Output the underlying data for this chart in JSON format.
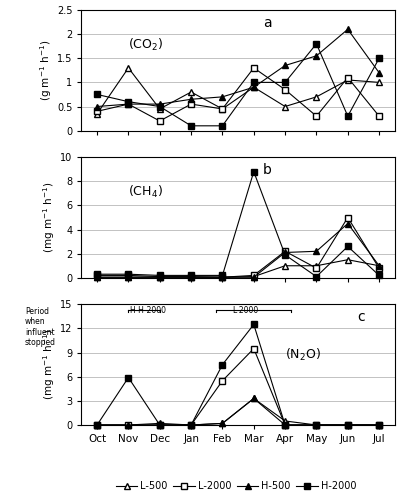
{
  "x_labels": [
    "Oct",
    "Nov",
    "Dec",
    "Jan",
    "Feb",
    "Mar",
    "Apr",
    "May",
    "Jun",
    "Jul"
  ],
  "x_vals": [
    0,
    1,
    2,
    3,
    4,
    5,
    6,
    7,
    8,
    9
  ],
  "co2_L500": [
    0.35,
    1.3,
    0.45,
    0.8,
    0.45,
    0.9,
    0.5,
    0.7,
    1.05,
    1.0
  ],
  "co2_L2000": [
    0.4,
    0.55,
    0.2,
    0.55,
    0.45,
    1.3,
    0.85,
    0.3,
    1.1,
    0.3
  ],
  "co2_H500": [
    0.5,
    0.55,
    0.55,
    0.65,
    0.7,
    0.9,
    1.35,
    1.55,
    2.1,
    1.2
  ],
  "co2_H2000": [
    0.75,
    0.6,
    0.5,
    0.1,
    0.1,
    1.0,
    1.0,
    1.8,
    0.3,
    1.5
  ],
  "ch4_L500": [
    0.05,
    0.05,
    0.05,
    0.05,
    0.05,
    0.1,
    1.0,
    1.0,
    1.5,
    1.0
  ],
  "ch4_L2000": [
    0.2,
    0.2,
    0.1,
    0.1,
    0.05,
    0.2,
    2.2,
    0.8,
    5.0,
    0.8
  ],
  "ch4_H500": [
    0.05,
    0.05,
    0.05,
    0.05,
    0.05,
    0.05,
    2.1,
    2.2,
    4.5,
    1.0
  ],
  "ch4_H2000": [
    0.3,
    0.3,
    0.2,
    0.2,
    0.2,
    8.8,
    1.9,
    0.1,
    2.6,
    0.2
  ],
  "n2o_L500": [
    0.0,
    0.0,
    0.2,
    0.0,
    0.2,
    3.3,
    0.5,
    0.0,
    0.0,
    0.0
  ],
  "n2o_L2000": [
    0.0,
    0.0,
    0.0,
    0.0,
    5.5,
    9.5,
    0.0,
    0.0,
    0.0,
    0.0
  ],
  "n2o_H500": [
    0.0,
    0.0,
    0.0,
    0.0,
    0.2,
    3.3,
    0.0,
    0.0,
    0.0,
    0.0
  ],
  "n2o_H2000": [
    0.0,
    5.9,
    0.0,
    0.0,
    7.5,
    12.5,
    0.0,
    0.0,
    0.0,
    0.0
  ],
  "co2_ylim": [
    0,
    2.5
  ],
  "co2_yticks": [
    0,
    0.5,
    1.0,
    1.5,
    2.0,
    2.5
  ],
  "co2_yticklabels": [
    "0",
    "0.5",
    "1",
    "1.5",
    "2",
    "2.5"
  ],
  "ch4_ylim": [
    0,
    10
  ],
  "ch4_yticks": [
    0,
    2,
    4,
    6,
    8,
    10
  ],
  "ch4_yticklabels": [
    "0",
    "2",
    "4",
    "6",
    "8",
    "10"
  ],
  "n2o_ylim": [
    0,
    15
  ],
  "n2o_yticks": [
    0,
    3,
    6,
    9,
    12,
    15
  ],
  "n2o_yticklabels": [
    "0",
    "3",
    "6",
    "9",
    "12",
    "15"
  ]
}
